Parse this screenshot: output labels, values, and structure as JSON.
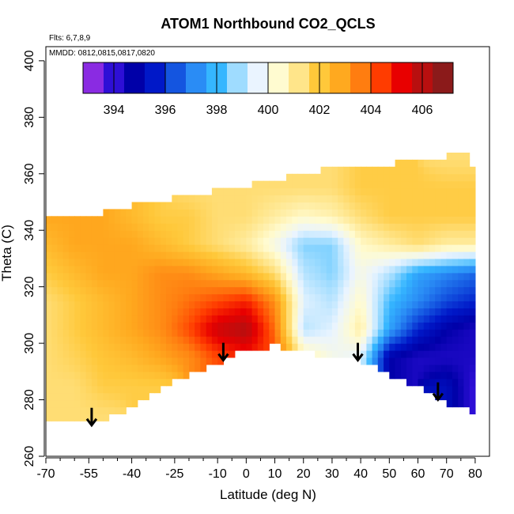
{
  "chart_data": {
    "type": "heatmap",
    "title": "ATOM1 Northbound CO2_QCLS",
    "annotations": {
      "flights": "Flts: 6,7,8,9",
      "dates": "MMDD: 0812,0815,0817,0820"
    },
    "xlabel": "Latitude (deg N)",
    "ylabel": "Theta (C)",
    "xlim": [
      -70,
      85
    ],
    "ylim": [
      260,
      405
    ],
    "x_ticks": [
      -70,
      -55,
      -40,
      -25,
      -10,
      0,
      10,
      20,
      30,
      40,
      50,
      60,
      70,
      80
    ],
    "y_ticks": [
      260,
      280,
      300,
      320,
      340,
      360,
      380,
      400
    ],
    "colorbar": {
      "range": [
        392.8,
        407.2
      ],
      "ticks": [
        394,
        396,
        398,
        400,
        402,
        404,
        406
      ],
      "colors": [
        "#8a2be2",
        "#2e0fd6",
        "#0000a8",
        "#0018c8",
        "#1455e0",
        "#2a8cf5",
        "#35b6ff",
        "#9fdcff",
        "#eaf4ff",
        "#fffbd0",
        "#ffe58a",
        "#ffc83a",
        "#ffa91f",
        "#ff7d10",
        "#ff3c00",
        "#e80000",
        "#b80f0f",
        "#8b1a1a"
      ]
    },
    "field": {
      "x": [
        -70,
        -60,
        -50,
        -40,
        -30,
        -20,
        -10,
        0,
        10,
        20,
        30,
        40,
        50,
        60,
        70,
        80
      ],
      "theta": [
        275,
        285,
        295,
        305,
        315,
        325,
        335,
        345,
        355,
        365
      ],
      "co2": [
        [
          401.5,
          401.5,
          401.5,
          null,
          null,
          null,
          null,
          null,
          null,
          null,
          null,
          null,
          null,
          null,
          null,
          null
        ],
        [
          401.5,
          401.5,
          402.0,
          402.0,
          402.0,
          null,
          null,
          null,
          null,
          null,
          null,
          null,
          null,
          null,
          395.0,
          393.5
        ],
        [
          401.5,
          401.8,
          402.2,
          402.5,
          403.0,
          403.5,
          404.5,
          405.0,
          404.5,
          401.0,
          400.0,
          399.5,
          394.5,
          394.0,
          394.0,
          394.0
        ],
        [
          401.5,
          402.0,
          402.5,
          403.0,
          403.5,
          404.5,
          406.0,
          406.5,
          404.0,
          399.0,
          399.5,
          401.0,
          397.5,
          395.5,
          394.5,
          394.0
        ],
        [
          401.5,
          402.0,
          402.5,
          403.0,
          403.5,
          404.0,
          404.5,
          405.0,
          403.5,
          399.5,
          399.0,
          400.5,
          398.0,
          397.0,
          396.0,
          395.5
        ],
        [
          402.0,
          402.5,
          403.0,
          403.0,
          403.5,
          403.5,
          403.0,
          402.5,
          401.5,
          399.0,
          398.5,
          400.0,
          399.0,
          397.5,
          397.0,
          396.5
        ],
        [
          402.5,
          403.0,
          403.0,
          403.0,
          402.5,
          402.0,
          401.5,
          401.0,
          400.0,
          398.5,
          398.5,
          400.5,
          401.0,
          401.5,
          401.0,
          401.0
        ],
        [
          403.0,
          403.0,
          403.0,
          402.5,
          402.0,
          402.0,
          401.5,
          401.5,
          401.0,
          400.5,
          400.8,
          401.5,
          402.0,
          402.0,
          402.0,
          402.0
        ],
        [
          null,
          null,
          null,
          null,
          null,
          401.5,
          401.5,
          401.5,
          401.5,
          401.5,
          401.5,
          402.0,
          402.0,
          402.0,
          402.0,
          402.0
        ],
        [
          null,
          null,
          null,
          null,
          null,
          null,
          null,
          null,
          null,
          null,
          null,
          null,
          null,
          null,
          401.5,
          401.5
        ]
      ]
    },
    "boundary": {
      "bottom_theta": [
        [
          -70,
          272
        ],
        [
          -50,
          272
        ],
        [
          -40,
          278
        ],
        [
          -25,
          287
        ],
        [
          -10,
          293
        ],
        [
          -5,
          296
        ],
        [
          10,
          299
        ],
        [
          15,
          298
        ],
        [
          25,
          296
        ],
        [
          40,
          294
        ],
        [
          50,
          289
        ],
        [
          60,
          285
        ],
        [
          70,
          279
        ],
        [
          78,
          276
        ],
        [
          80,
          275
        ]
      ],
      "top_theta": [
        [
          -65,
          346
        ],
        [
          -50,
          346
        ],
        [
          -35,
          350
        ],
        [
          -20,
          352
        ],
        [
          -5,
          355
        ],
        [
          10,
          358
        ],
        [
          25,
          361
        ],
        [
          40,
          363
        ],
        [
          55,
          364
        ],
        [
          70,
          366
        ],
        [
          78,
          368
        ],
        [
          80,
          355
        ],
        [
          81,
          300
        ],
        [
          80,
          275
        ]
      ]
    },
    "markers": {
      "style": "down-arrow",
      "latitude": [
        -54,
        -8,
        39,
        67
      ],
      "theta": [
        271,
        294,
        294,
        280
      ]
    }
  }
}
